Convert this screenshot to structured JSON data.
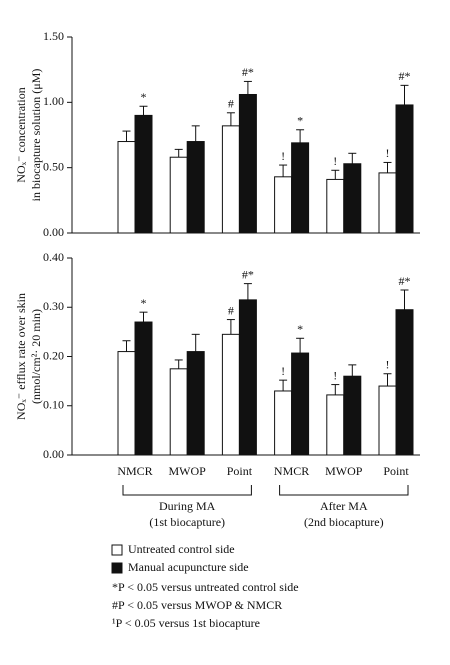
{
  "chart_data": [
    {
      "type": "bar",
      "ylabel": [
        "NOₓ⁻ concentration",
        "in biocapture solution (μM)"
      ],
      "ylim": [
        0,
        1.5
      ],
      "yticks": [
        {
          "value": 0,
          "label": "0.00"
        },
        {
          "value": 0.5,
          "label": "0.50"
        },
        {
          "value": 1,
          "label": "1.00"
        },
        {
          "value": 1.5,
          "label": "1.50"
        }
      ],
      "series": [
        {
          "color": "#ffffff",
          "values": [
            0.7,
            0.58,
            0.82,
            0.43,
            0.41,
            0.46
          ],
          "errors": [
            0.08,
            0.06,
            0.1,
            0.09,
            0.07,
            0.08
          ],
          "annotations": [
            null,
            null,
            "#",
            "!",
            "!",
            "!"
          ]
        },
        {
          "color": "#111111",
          "values": [
            0.9,
            0.7,
            1.06,
            0.69,
            0.53,
            0.98
          ],
          "errors": [
            0.07,
            0.12,
            0.1,
            0.1,
            0.08,
            0.15
          ],
          "annotations": [
            "*",
            null,
            "#*",
            "*",
            null,
            "#*"
          ]
        }
      ]
    },
    {
      "type": "bar",
      "ylabel": [
        "NOₓ⁻ efflux rate over skin",
        "(nmol/cm²· 20 min)"
      ],
      "categories": [
        "NMCR",
        "MWOP",
        "Point",
        "NMCR",
        "MWOP",
        "Point"
      ],
      "groups": [
        {
          "label": [
            "During MA",
            "(1st biocapture)"
          ]
        },
        {
          "label": [
            "After MA",
            "(2nd biocapture)"
          ]
        }
      ],
      "ylim": [
        0,
        0.4
      ],
      "yticks": [
        {
          "value": 0,
          "label": "0.00"
        },
        {
          "value": 0.1,
          "label": "0.10"
        },
        {
          "value": 0.2,
          "label": "0.20"
        },
        {
          "value": 0.3,
          "label": "0.30"
        },
        {
          "value": 0.4,
          "label": "0.40"
        }
      ],
      "series": [
        {
          "name": "Untreated control side",
          "color": "#ffffff",
          "values": [
            0.21,
            0.175,
            0.245,
            0.13,
            0.122,
            0.14
          ],
          "errors": [
            0.022,
            0.018,
            0.03,
            0.022,
            0.021,
            0.025
          ],
          "annotations": [
            null,
            null,
            "#",
            "!",
            "!",
            "!"
          ]
        },
        {
          "name": "Manual acupuncture side",
          "color": "#111111",
          "values": [
            0.27,
            0.21,
            0.315,
            0.207,
            0.16,
            0.295
          ],
          "errors": [
            0.02,
            0.035,
            0.033,
            0.03,
            0.023,
            0.04
          ],
          "annotations": [
            "*",
            null,
            "#*",
            "*",
            null,
            "#*"
          ]
        }
      ]
    }
  ],
  "footnotes": [
    "*P < 0.05 versus untreated control side",
    "#P < 0.05 versus MWOP & NMCR",
    "¹P < 0.05 versus 1st biocapture"
  ]
}
